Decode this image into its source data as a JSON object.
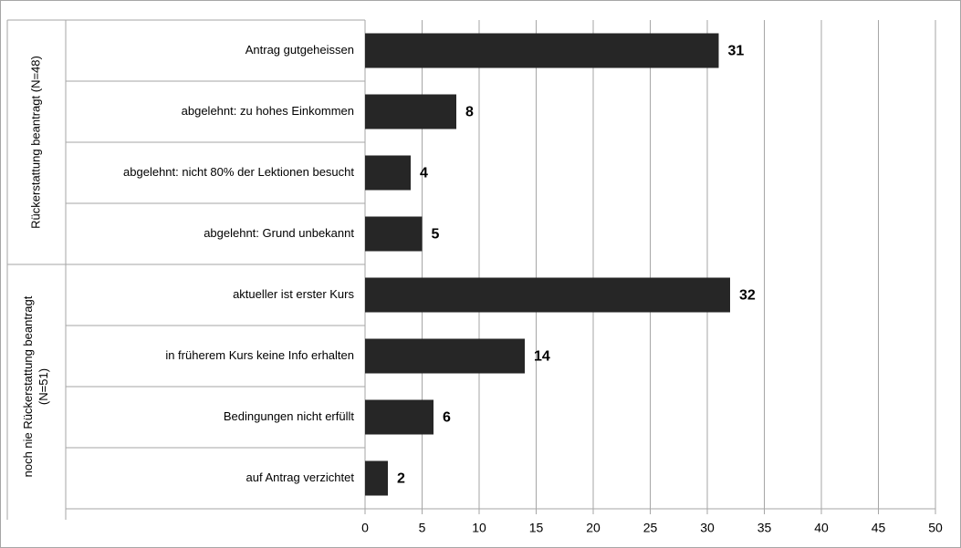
{
  "chart_data": {
    "type": "bar",
    "orientation": "horizontal",
    "groups": [
      {
        "label": [
          "Rückerstattung beantragt (N=48)"
        ],
        "start": 0,
        "count": 4
      },
      {
        "label": [
          "noch nie Rückerstattung beantragt",
          "(N=51)"
        ],
        "start": 4,
        "count": 4
      }
    ],
    "categories": [
      "Antrag gutgeheissen",
      "abgelehnt: zu hohes Einkommen",
      "abgelehnt: nicht 80% der Lektionen besucht",
      "abgelehnt: Grund unbekannt",
      "aktueller ist erster Kurs",
      "in früherem Kurs keine Info erhalten",
      "Bedingungen nicht erfüllt",
      "auf Antrag verzichtet"
    ],
    "values": [
      31,
      8,
      4,
      5,
      32,
      14,
      6,
      2
    ],
    "color": "#262626",
    "xlim": [
      0,
      50
    ],
    "xticks": [
      0,
      5,
      10,
      15,
      20,
      25,
      30,
      35,
      40,
      45,
      50
    ],
    "grid": true
  }
}
